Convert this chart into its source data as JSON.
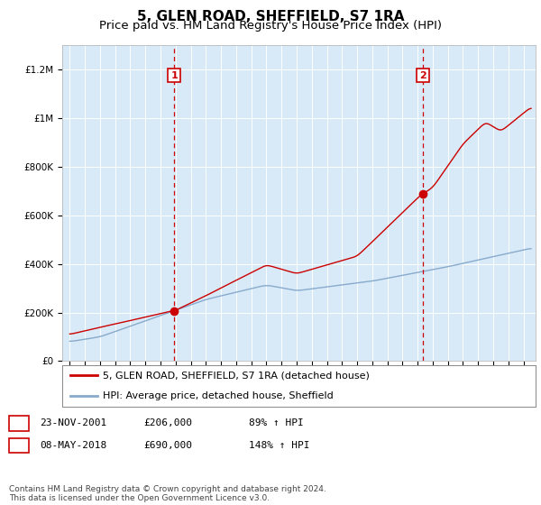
{
  "title": "5, GLEN ROAD, SHEFFIELD, S7 1RA",
  "subtitle": "Price paid vs. HM Land Registry's House Price Index (HPI)",
  "title_fontsize": 11,
  "subtitle_fontsize": 9.5,
  "ylabel_ticks": [
    "£0",
    "£200K",
    "£400K",
    "£600K",
    "£800K",
    "£1M",
    "£1.2M"
  ],
  "ytick_values": [
    0,
    200000,
    400000,
    600000,
    800000,
    1000000,
    1200000
  ],
  "ylim": [
    0,
    1300000
  ],
  "xlim_start": 1994.5,
  "xlim_end": 2025.8,
  "sale1_x": 2001.9,
  "sale1_y": 206000,
  "sale1_label": "1",
  "sale2_x": 2018.35,
  "sale2_y": 690000,
  "sale2_label": "2",
  "vline1_x": 2001.9,
  "vline2_x": 2018.35,
  "red_line_color": "#cc0000",
  "blue_line_color": "#88aacc",
  "vline_color": "#cc0000",
  "plot_bg_color": "#d8eaf7",
  "legend_label_red": "5, GLEN ROAD, SHEFFIELD, S7 1RA (detached house)",
  "legend_label_blue": "HPI: Average price, detached house, Sheffield",
  "table_row1": [
    "1",
    "23-NOV-2001",
    "£206,000",
    "89% ↑ HPI"
  ],
  "table_row2": [
    "2",
    "08-MAY-2018",
    "£690,000",
    "148% ↑ HPI"
  ],
  "footnote": "Contains HM Land Registry data © Crown copyright and database right 2024.\nThis data is licensed under the Open Government Licence v3.0.",
  "marker_color_sale": "#cc0000",
  "marker_size": 6,
  "grid_color": "#ffffff",
  "tick_fontsize": 7.5,
  "legend_fontsize": 8,
  "table_fontsize": 8,
  "footnote_fontsize": 6.5
}
